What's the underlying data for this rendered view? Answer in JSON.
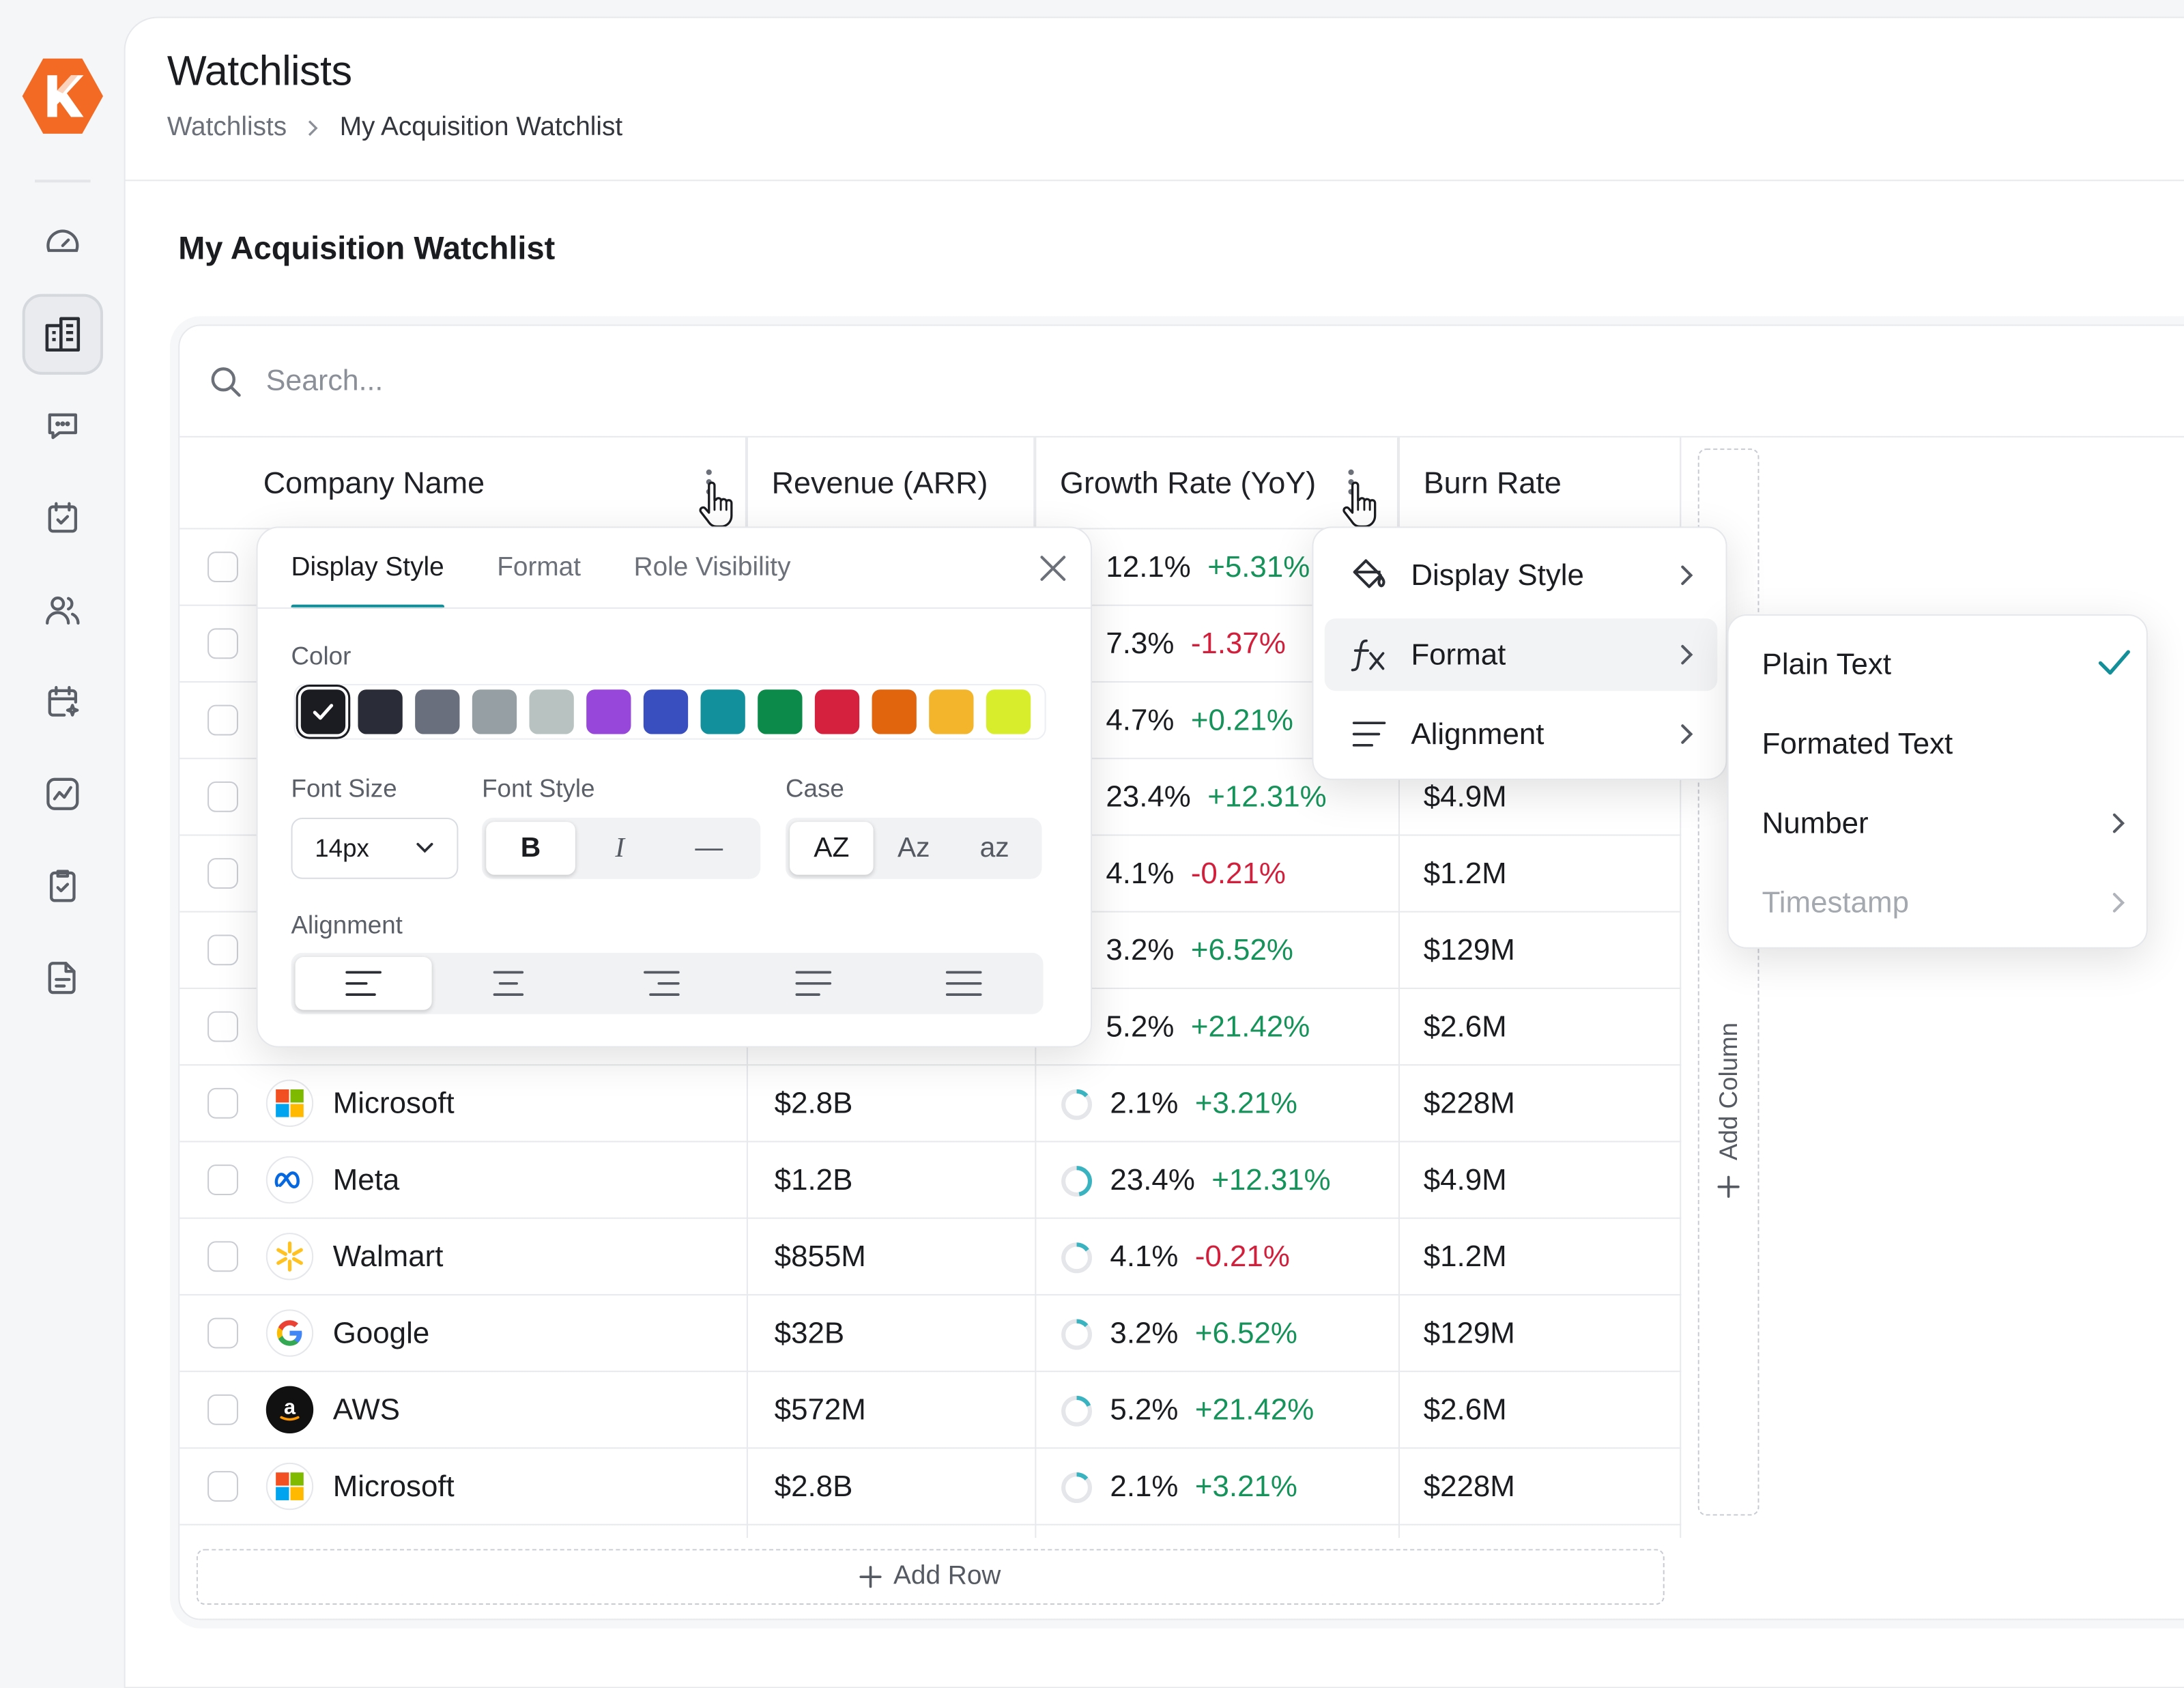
{
  "brand": {
    "logo_color": "#f26a23"
  },
  "sidebar": {
    "items": [
      {
        "icon": "gauge-icon"
      },
      {
        "icon": "buildings-icon",
        "active": true
      },
      {
        "icon": "chat-icon"
      },
      {
        "icon": "calendar-check-icon"
      },
      {
        "icon": "users-icon"
      },
      {
        "icon": "calendar-sparkle-icon"
      },
      {
        "icon": "trend-chart-icon"
      },
      {
        "icon": "clipboard-check-icon"
      },
      {
        "icon": "document-icon"
      }
    ]
  },
  "header": {
    "title": "Watchlists",
    "breadcrumb": [
      "Watchlists",
      "My Acquisition Watchlist"
    ]
  },
  "list_title": "My Acquisition Watchlist",
  "search": {
    "placeholder": "Search..."
  },
  "columns": [
    "Company Name",
    "Revenue (ARR)",
    "Growth Rate (YoY)",
    "Burn Rate"
  ],
  "rows_hidden": [
    {
      "growth": "12.1%",
      "change": "+5.31%",
      "burn": ""
    },
    {
      "growth": "7.3%",
      "change": "-1.37%",
      "burn": ""
    },
    {
      "growth": "4.7%",
      "change": "+0.21%",
      "burn": ""
    },
    {
      "growth": "23.4%",
      "change": "+12.31%",
      "burn": "$4.9M"
    },
    {
      "growth": "4.1%",
      "change": "-0.21%",
      "burn": "$1.2M"
    },
    {
      "growth": "3.2%",
      "change": "+6.52%",
      "burn": "$129M"
    },
    {
      "growth": "5.2%",
      "change": "+21.42%",
      "burn": "$2.6M"
    }
  ],
  "rows": [
    {
      "company": "Microsoft",
      "logo": "microsoft-logo",
      "revenue": "$2.8B",
      "growth": "2.1%",
      "change": "+3.21%",
      "burn": "$228M"
    },
    {
      "company": "Meta",
      "logo": "meta-logo",
      "revenue": "$1.2B",
      "growth": "23.4%",
      "change": "+12.31%",
      "burn": "$4.9M"
    },
    {
      "company": "Walmart",
      "logo": "walmart-logo",
      "revenue": "$855M",
      "growth": "4.1%",
      "change": "-0.21%",
      "burn": "$1.2M"
    },
    {
      "company": "Google",
      "logo": "google-logo",
      "revenue": "$32B",
      "growth": "3.2%",
      "change": "+6.52%",
      "burn": "$129M"
    },
    {
      "company": "AWS",
      "logo": "amazon-logo",
      "revenue": "$572M",
      "growth": "5.2%",
      "change": "+21.42%",
      "burn": "$2.6M"
    },
    {
      "company": "Microsoft",
      "logo": "microsoft-logo",
      "revenue": "$2.8B",
      "growth": "2.1%",
      "change": "+3.21%",
      "burn": "$228M"
    }
  ],
  "add_row_label": "Add Row",
  "add_column_label": "Add Column",
  "style_panel": {
    "tabs": [
      "Display Style",
      "Format",
      "Role Visibility"
    ],
    "active_tab": "Display Style",
    "color_label": "Color",
    "colors": [
      "#1b1c22",
      "#2a2c37",
      "#6a6f7e",
      "#96a0a4",
      "#b7c2c1",
      "#9747d9",
      "#3a4fbf",
      "#12909c",
      "#0b8a4a",
      "#d6213e",
      "#e0650d",
      "#f2b52c",
      "#d8ee2c"
    ],
    "selected_color": "#1b1c22",
    "font_size_label": "Font Size",
    "font_size": "14px",
    "font_style_label": "Font Style",
    "font_styles": [
      "B",
      "I",
      "—"
    ],
    "case_label": "Case",
    "cases": [
      "AZ",
      "Az",
      "az"
    ],
    "alignment_label": "Alignment",
    "alignments": [
      "align-left",
      "align-center",
      "align-right",
      "align-justify",
      "align-distributed"
    ]
  },
  "column_menu": {
    "items": [
      "Display Style",
      "Format",
      "Alignment"
    ],
    "highlighted": "Format"
  },
  "format_menu": {
    "items": [
      {
        "label": "Plain Text",
        "checked": true
      },
      {
        "label": "Formated Text"
      },
      {
        "label": "Number",
        "submenu": true
      },
      {
        "label": "Timestamp",
        "submenu": true,
        "disabled": true
      }
    ]
  },
  "colors": {
    "accent": "#128f99",
    "positive": "#16935a",
    "negative": "#d21f3c"
  }
}
